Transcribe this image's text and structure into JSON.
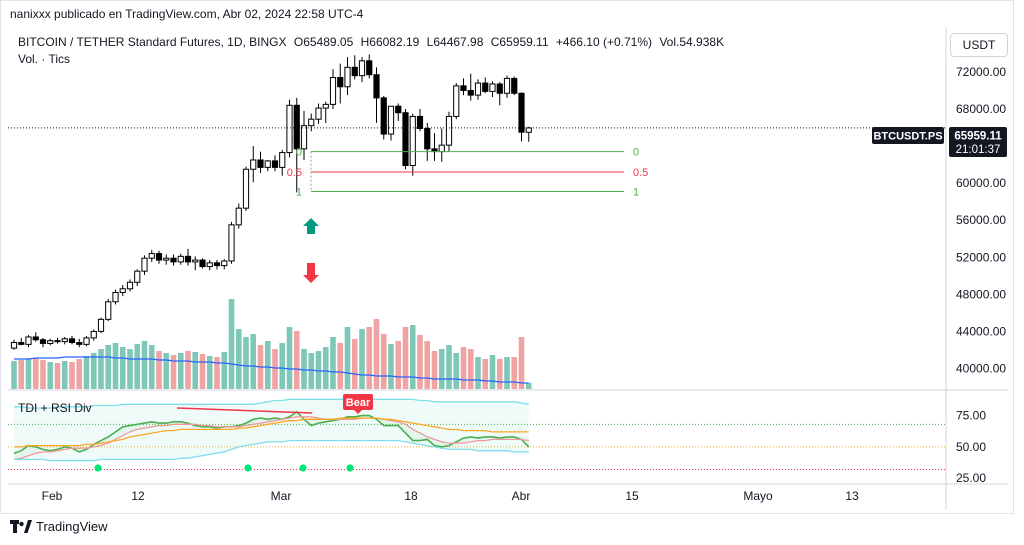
{
  "header": {
    "publisher": "nanixxx publicado en TradingView.com, Abr 02, 2024 22:58 UTC-4",
    "symbol": "BITCOIN / TETHER Standard Futures, 1D, BINGX",
    "ohlc": {
      "o": "O65489.05",
      "h": "H66082.19",
      "l": "L64467.98",
      "c": "C65959.11",
      "change": "+466.10 (+0.71%)",
      "vol": "Vol.54.938K"
    },
    "volume_indicator": "Vol. · Tics",
    "currency_button": "USDT"
  },
  "price_badges": {
    "ticker": "BTCUSDT.PS",
    "last_price": "65959.11",
    "countdown": "21:01:37"
  },
  "fib_labels": {
    "left": [
      "0",
      "0.5",
      "1"
    ],
    "right": [
      "0",
      "0.5",
      "1"
    ]
  },
  "annotations": {
    "bear_label": "Bear"
  },
  "rsi_panel": {
    "title": "TDI + RSI Div",
    "y_ticks": [
      "75.00",
      "50.00",
      "25.00"
    ]
  },
  "footer": {
    "brand": "TradingView"
  },
  "colors": {
    "up": "#ffffff",
    "down": "#000000",
    "vol_up": "#7fc8b8",
    "vol_down": "#f0a3a3",
    "vol_ma": "#2962ff",
    "fib_zero": "#4caf50",
    "fib_half": "#f23645",
    "arrow_up": "#089981",
    "arrow_down": "#f23645"
  },
  "chart_data": [
    {
      "type": "candlestick",
      "title": "BITCOIN / TETHER Standard Futures, 1D, BINGX",
      "y_ticks": [
        "72000.00",
        "68000.00",
        "64000.00",
        "60000.00",
        "56000.00",
        "52000.00",
        "48000.00",
        "44000.00",
        "40000.00"
      ],
      "x_ticks": [
        "Feb",
        "12",
        "Mar",
        "18",
        "Abr",
        "15",
        "Mayo",
        "13"
      ],
      "ylim": [
        38000,
        74800
      ],
      "candles": [
        {
          "o": 42200,
          "h": 43100,
          "l": 42000,
          "c": 42800
        },
        {
          "o": 42800,
          "h": 43300,
          "l": 42500,
          "c": 42600
        },
        {
          "o": 42600,
          "h": 43600,
          "l": 42300,
          "c": 43400
        },
        {
          "o": 43400,
          "h": 43900,
          "l": 42900,
          "c": 43100
        },
        {
          "o": 43100,
          "h": 43300,
          "l": 42300,
          "c": 42700
        },
        {
          "o": 42700,
          "h": 43200,
          "l": 42500,
          "c": 43000
        },
        {
          "o": 43000,
          "h": 43300,
          "l": 42700,
          "c": 42900
        },
        {
          "o": 42900,
          "h": 43400,
          "l": 42600,
          "c": 43200
        },
        {
          "o": 43200,
          "h": 43500,
          "l": 42600,
          "c": 42800
        },
        {
          "o": 42800,
          "h": 43200,
          "l": 42300,
          "c": 42600
        },
        {
          "o": 42600,
          "h": 43500,
          "l": 42400,
          "c": 43300
        },
        {
          "o": 43300,
          "h": 44200,
          "l": 43000,
          "c": 44000
        },
        {
          "o": 44000,
          "h": 45500,
          "l": 43800,
          "c": 45300
        },
        {
          "o": 45300,
          "h": 47500,
          "l": 45100,
          "c": 47200
        },
        {
          "o": 47200,
          "h": 48500,
          "l": 46900,
          "c": 48200
        },
        {
          "o": 48200,
          "h": 49000,
          "l": 47800,
          "c": 48600
        },
        {
          "o": 48600,
          "h": 49600,
          "l": 48300,
          "c": 49300
        },
        {
          "o": 49300,
          "h": 50700,
          "l": 48900,
          "c": 50500
        },
        {
          "o": 50500,
          "h": 52200,
          "l": 50100,
          "c": 51900
        },
        {
          "o": 51900,
          "h": 52800,
          "l": 51500,
          "c": 52400
        },
        {
          "o": 52400,
          "h": 52700,
          "l": 51300,
          "c": 51700
        },
        {
          "o": 51700,
          "h": 52300,
          "l": 51200,
          "c": 51900
        },
        {
          "o": 51900,
          "h": 52300,
          "l": 51100,
          "c": 51500
        },
        {
          "o": 51500,
          "h": 52400,
          "l": 51200,
          "c": 52100
        },
        {
          "o": 52100,
          "h": 52900,
          "l": 51100,
          "c": 51500
        },
        {
          "o": 51500,
          "h": 52100,
          "l": 50600,
          "c": 51700
        },
        {
          "o": 51700,
          "h": 51900,
          "l": 50800,
          "c": 51000
        },
        {
          "o": 51000,
          "h": 51700,
          "l": 50600,
          "c": 51400
        },
        {
          "o": 51400,
          "h": 51700,
          "l": 50700,
          "c": 51100
        },
        {
          "o": 51100,
          "h": 51800,
          "l": 50700,
          "c": 51600
        },
        {
          "o": 51600,
          "h": 55800,
          "l": 51300,
          "c": 55500
        },
        {
          "o": 55500,
          "h": 57800,
          "l": 55100,
          "c": 57300
        },
        {
          "o": 57300,
          "h": 61800,
          "l": 57000,
          "c": 61500
        },
        {
          "o": 61500,
          "h": 64000,
          "l": 60100,
          "c": 62500
        },
        {
          "o": 62500,
          "h": 63400,
          "l": 61100,
          "c": 61700
        },
        {
          "o": 61700,
          "h": 62500,
          "l": 61300,
          "c": 62400
        },
        {
          "o": 62400,
          "h": 63000,
          "l": 61300,
          "c": 61700
        },
        {
          "o": 61700,
          "h": 63600,
          "l": 60800,
          "c": 63300
        },
        {
          "o": 63300,
          "h": 69000,
          "l": 62800,
          "c": 68400
        },
        {
          "o": 68400,
          "h": 69200,
          "l": 59000,
          "c": 63700
        },
        {
          "o": 63700,
          "h": 67800,
          "l": 62500,
          "c": 66200
        },
        {
          "o": 66200,
          "h": 67500,
          "l": 65600,
          "c": 66900
        },
        {
          "o": 66900,
          "h": 68600,
          "l": 66400,
          "c": 68100
        },
        {
          "o": 68100,
          "h": 68800,
          "l": 66500,
          "c": 68500
        },
        {
          "o": 68500,
          "h": 72300,
          "l": 68000,
          "c": 71400
        },
        {
          "o": 71400,
          "h": 72900,
          "l": 68600,
          "c": 70400
        },
        {
          "o": 70400,
          "h": 73600,
          "l": 69500,
          "c": 72500
        },
        {
          "o": 72500,
          "h": 73800,
          "l": 71200,
          "c": 71600
        },
        {
          "o": 71600,
          "h": 73600,
          "l": 70900,
          "c": 73200
        },
        {
          "o": 73200,
          "h": 73900,
          "l": 71300,
          "c": 71700
        },
        {
          "o": 71700,
          "h": 72500,
          "l": 66500,
          "c": 69200
        },
        {
          "o": 69200,
          "h": 69400,
          "l": 64700,
          "c": 65300
        },
        {
          "o": 65300,
          "h": 68300,
          "l": 64600,
          "c": 68300
        },
        {
          "o": 68300,
          "h": 68600,
          "l": 66700,
          "c": 67600
        },
        {
          "o": 67600,
          "h": 68000,
          "l": 61500,
          "c": 61900
        },
        {
          "o": 61900,
          "h": 67500,
          "l": 60800,
          "c": 67200
        },
        {
          "o": 67200,
          "h": 68000,
          "l": 65600,
          "c": 65900
        },
        {
          "o": 65900,
          "h": 66500,
          "l": 62400,
          "c": 63700
        },
        {
          "o": 63700,
          "h": 65400,
          "l": 62400,
          "c": 63400
        },
        {
          "o": 63400,
          "h": 65900,
          "l": 62300,
          "c": 64100
        },
        {
          "o": 64100,
          "h": 67700,
          "l": 63400,
          "c": 67200
        },
        {
          "o": 67200,
          "h": 70800,
          "l": 66900,
          "c": 70500
        },
        {
          "o": 70500,
          "h": 71300,
          "l": 69500,
          "c": 70000
        },
        {
          "o": 70000,
          "h": 71800,
          "l": 68900,
          "c": 69500
        },
        {
          "o": 69500,
          "h": 71200,
          "l": 69000,
          "c": 70800
        },
        {
          "o": 70800,
          "h": 71400,
          "l": 69700,
          "c": 69900
        },
        {
          "o": 69900,
          "h": 71000,
          "l": 69300,
          "c": 70700
        },
        {
          "o": 70700,
          "h": 70900,
          "l": 68400,
          "c": 69700
        },
        {
          "o": 69700,
          "h": 71600,
          "l": 69200,
          "c": 71300
        },
        {
          "o": 71300,
          "h": 71500,
          "l": 69500,
          "c": 69700
        },
        {
          "o": 69700,
          "h": 69800,
          "l": 64500,
          "c": 65500
        },
        {
          "o": 65489.05,
          "h": 66082.19,
          "l": 64467.98,
          "c": 65959.11
        }
      ],
      "volume": [
        28,
        29,
        30,
        31,
        29,
        27,
        26,
        28,
        27,
        30,
        33,
        36,
        40,
        44,
        46,
        42,
        40,
        45,
        48,
        44,
        38,
        36,
        34,
        36,
        38,
        37,
        35,
        33,
        32,
        37,
        90,
        60,
        52,
        55,
        44,
        48,
        40,
        46,
        62,
        58,
        40,
        36,
        38,
        42,
        52,
        46,
        62,
        50,
        60,
        62,
        70,
        55,
        45,
        48,
        62,
        64,
        54,
        48,
        38,
        40,
        44,
        36,
        42,
        40,
        32,
        30,
        34,
        30,
        32,
        32,
        52,
        6
      ],
      "volume_ma": [
        400,
        400,
        400,
        401,
        401,
        401,
        401,
        402,
        402,
        402,
        402,
        402,
        402,
        402,
        401,
        401,
        400,
        400,
        400,
        400,
        399,
        399,
        398,
        398,
        398,
        397,
        397,
        397,
        396,
        396,
        395,
        394,
        393,
        393,
        392,
        392,
        391,
        391,
        390,
        390,
        389,
        389,
        388,
        388,
        387,
        387,
        386,
        385,
        384,
        384,
        383,
        383,
        383,
        382,
        382,
        382,
        381,
        381,
        380,
        380,
        380,
        380,
        379,
        379,
        379,
        378,
        378,
        377,
        377,
        377,
        376,
        376
      ],
      "fibonacci": [
        {
          "level": "0",
          "price": 63400
        },
        {
          "level": "0.5",
          "price": 61200
        },
        {
          "level": "1",
          "price": 59100
        }
      ],
      "current_price": 65959.11
    },
    {
      "type": "line",
      "title": "TDI + RSI Div",
      "ylim": [
        22,
        93
      ],
      "y_ticks": [
        75,
        50,
        25
      ],
      "dotted_levels": [
        68,
        50,
        32
      ],
      "series": [
        {
          "color": "#4caf50",
          "values": [
            45,
            47,
            51,
            50,
            48,
            47,
            48,
            50,
            49,
            46,
            48,
            52,
            55,
            58,
            62,
            66,
            67,
            68,
            69,
            70,
            69,
            69,
            70,
            70,
            69,
            67,
            66,
            66,
            65,
            66,
            66,
            67,
            69,
            72,
            73,
            72,
            73,
            72,
            74,
            78,
            72,
            67,
            69,
            70,
            71,
            72,
            74,
            74,
            75,
            75,
            72,
            67,
            67,
            67,
            61,
            55,
            55,
            56,
            51,
            50,
            51,
            54,
            57,
            58,
            57,
            58,
            58,
            57,
            58,
            58,
            56,
            50
          ]
        },
        {
          "color": "#ef9a9a",
          "values": [
            40,
            41,
            43,
            45,
            46,
            46,
            47,
            48,
            49,
            49,
            49,
            50,
            51,
            53,
            56,
            59,
            62,
            64,
            65,
            66,
            67,
            67,
            68,
            68,
            68,
            68,
            67,
            67,
            66,
            66,
            66,
            66,
            67,
            68,
            69,
            70,
            71,
            72,
            73,
            74,
            74,
            74,
            73,
            72,
            72,
            72,
            72,
            72,
            73,
            73,
            73,
            72,
            71,
            70,
            68,
            64,
            61,
            58,
            56,
            54,
            53,
            53,
            53,
            54,
            55,
            55,
            56,
            56,
            56,
            56,
            56,
            55
          ]
        },
        {
          "color": "#f9a825",
          "values": [
            50,
            50,
            51,
            51,
            51,
            51,
            51,
            51,
            51,
            51,
            52,
            52,
            53,
            54,
            55,
            56,
            58,
            59,
            60,
            61,
            62,
            63,
            63,
            64,
            64,
            64,
            64,
            64,
            64,
            64,
            64,
            65,
            65,
            66,
            67,
            68,
            69,
            70,
            71,
            71,
            72,
            72,
            72,
            72,
            72,
            73,
            73,
            73,
            73,
            73,
            73,
            72,
            72,
            71,
            70,
            69,
            68,
            67,
            66,
            65,
            64,
            64,
            63,
            63,
            63,
            63,
            62,
            62,
            62,
            62,
            62,
            62
          ]
        },
        {
          "color": "#80deea",
          "values": [
            82,
            82,
            81,
            81,
            81,
            81,
            82,
            82,
            82,
            82,
            82,
            83,
            83,
            83,
            83,
            84,
            84,
            84,
            84,
            84,
            84,
            84,
            84,
            84,
            84,
            84,
            84,
            84,
            84,
            84,
            84,
            84,
            84,
            84,
            85,
            86,
            87,
            87,
            88,
            88,
            88,
            88,
            88,
            88,
            88,
            88,
            88,
            88,
            88,
            88,
            88,
            88,
            88,
            88,
            88,
            88,
            87,
            87,
            86,
            86,
            86,
            86,
            86,
            86,
            86,
            86,
            86,
            86,
            86,
            86,
            85,
            84
          ]
        },
        {
          "color": "#80deea",
          "values": [
            40,
            40,
            40,
            40,
            40,
            39,
            39,
            39,
            39,
            39,
            39,
            39,
            40,
            40,
            40,
            40,
            40,
            40,
            40,
            40,
            40,
            40,
            40,
            41,
            41,
            42,
            43,
            44,
            45,
            46,
            48,
            50,
            51,
            52,
            53,
            54,
            54,
            54,
            55,
            55,
            55,
            55,
            55,
            55,
            55,
            55,
            55,
            55,
            55,
            55,
            55,
            55,
            55,
            55,
            54,
            53,
            52,
            51,
            50,
            49,
            48,
            48,
            48,
            48,
            47,
            47,
            47,
            47,
            47,
            46,
            46,
            46
          ]
        }
      ],
      "signal_points": [
        {
          "candle": 7,
          "value": 38
        },
        {
          "candle": 27,
          "value": 38
        },
        {
          "candle": 33,
          "value": 38
        },
        {
          "candle": 38,
          "value": 38
        }
      ],
      "divergence": {
        "from_candle": 28,
        "from_value": 81,
        "to_candle": 37,
        "to_value": 77,
        "label": "Bear"
      }
    }
  ]
}
